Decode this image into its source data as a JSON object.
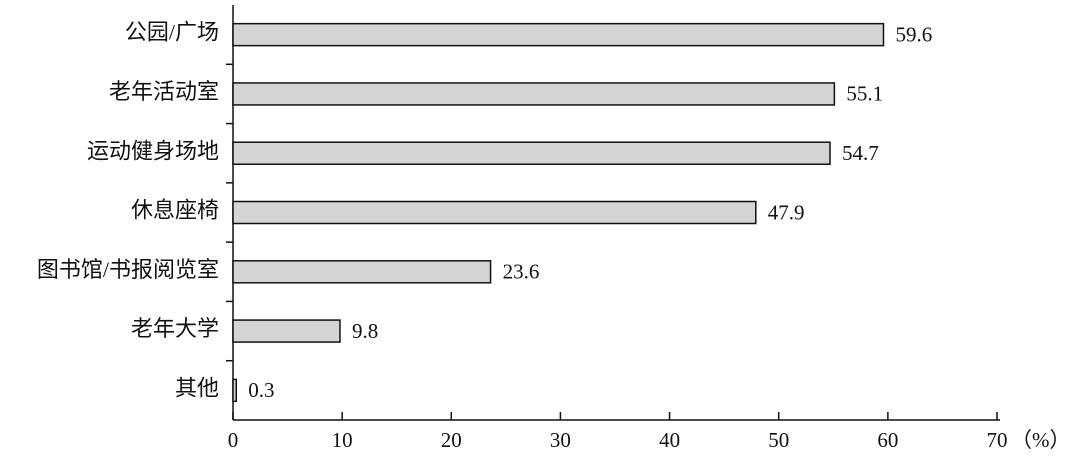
{
  "chart_data": {
    "type": "bar",
    "orientation": "horizontal",
    "categories": [
      "公园/广场",
      "老年活动室",
      "运动健身场地",
      "休息座椅",
      "图书馆/书报阅览室",
      "老年大学",
      "其他"
    ],
    "values": [
      59.6,
      55.1,
      54.7,
      47.9,
      23.6,
      9.8,
      0.3
    ],
    "color": "#d4d4d4",
    "xlim": [
      0,
      70
    ],
    "xticks": [
      0,
      10,
      20,
      30,
      40,
      50,
      60,
      70
    ],
    "x_label": "（%）"
  }
}
